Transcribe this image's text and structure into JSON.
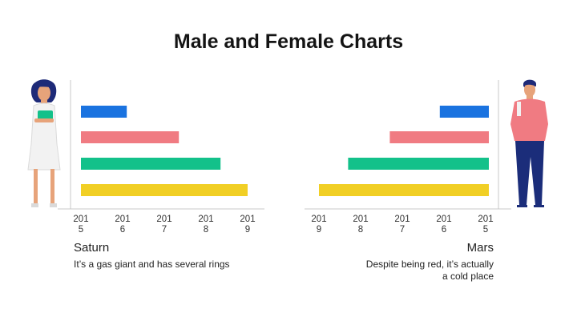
{
  "title": "Male and Female Charts",
  "colors": {
    "blue": "#1a73e0",
    "pink": "#f07b82",
    "green": "#13c18a",
    "yellow": "#f1cf25",
    "axis": "#c8c8c8"
  },
  "chart_data": [
    {
      "type": "bar",
      "orientation": "horizontal",
      "direction": "left-to-right",
      "xticks": [
        "2015",
        "2016",
        "2017",
        "2018",
        "2019"
      ],
      "bars": [
        {
          "color": "blue",
          "value": 2016.1
        },
        {
          "color": "pink",
          "value": 2017.35
        },
        {
          "color": "green",
          "value": 2018.35
        },
        {
          "color": "yellow",
          "value": 2019
        }
      ],
      "xlim": [
        2014.8,
        2019.4
      ],
      "caption": {
        "name": "Saturn",
        "description": "It’s a gas giant and has several rings"
      }
    },
    {
      "type": "bar",
      "orientation": "horizontal",
      "direction": "right-to-left",
      "xticks": [
        "2019",
        "2018",
        "2017",
        "2016",
        "2015"
      ],
      "bars": [
        {
          "color": "blue",
          "value": 2016.1
        },
        {
          "color": "pink",
          "value": 2017.3
        },
        {
          "color": "green",
          "value": 2018.3
        },
        {
          "color": "yellow",
          "value": 2019
        }
      ],
      "xlim": [
        2014.8,
        2019.4
      ],
      "caption": {
        "name": "Mars",
        "description": "Despite being red, it’s actually a cold place"
      }
    }
  ]
}
